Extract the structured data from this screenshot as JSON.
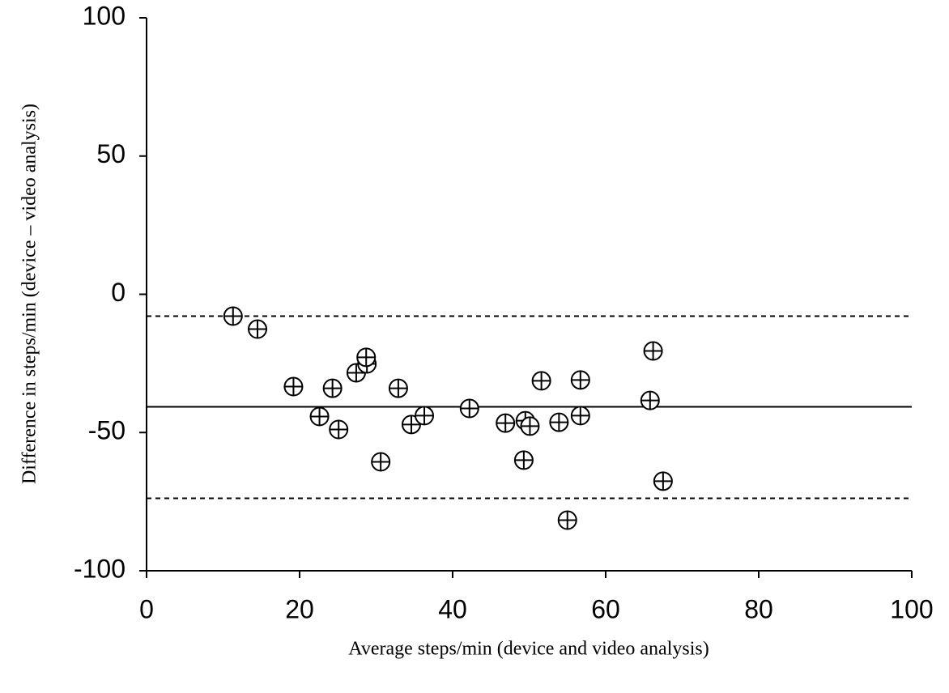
{
  "chart_data": {
    "type": "scatter",
    "xlabel": "Average steps/min (device and video analysis)",
    "ylabel": "Difference in steps/min  (device – video analysis)",
    "xlim": [
      0,
      100
    ],
    "xticks": [
      0,
      20,
      40,
      60,
      80,
      100
    ],
    "ylim": [
      -100,
      100
    ],
    "yticks": [
      -100,
      -50,
      0,
      50,
      100
    ],
    "color": "#000000",
    "x": [
      11.3,
      14.5,
      19.2,
      22.6,
      24.3,
      25.1,
      27.4,
      28.8,
      28.7,
      30.6,
      32.9,
      34.6,
      36.3,
      42.2,
      46.9,
      49.5,
      50.1,
      49.3,
      51.6,
      53.9,
      55.0,
      56.7,
      56.7,
      65.8,
      66.2,
      67.5
    ],
    "values": [
      -7.9,
      -12.6,
      -33.4,
      -44.2,
      -34.0,
      -48.9,
      -28.4,
      -25.2,
      -22.8,
      -60.6,
      -34.0,
      -47.1,
      -43.9,
      -41.3,
      -46.6,
      -45.7,
      -47.7,
      -60.0,
      -31.3,
      -46.3,
      -81.7,
      -43.9,
      -31.0,
      -38.4,
      -20.5,
      -67.6
    ],
    "reference_lines": [
      {
        "value": -40.7,
        "style": "solid"
      },
      {
        "value": -7.9,
        "style": "dashed"
      },
      {
        "value": -73.8,
        "style": "dashed"
      }
    ]
  }
}
